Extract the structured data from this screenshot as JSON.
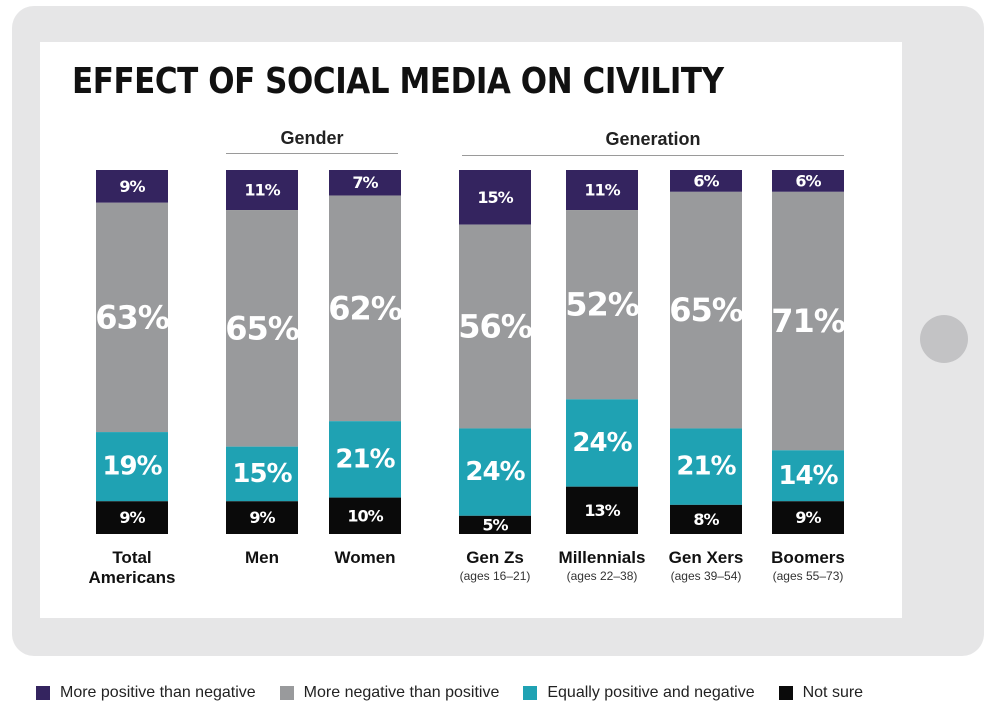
{
  "chart_data": {
    "type": "bar",
    "stacked": true,
    "orientation": "vertical",
    "title": "EFFECT OF SOCIAL MEDIA ON CIVILITY",
    "group_labels": [
      "Gender",
      "Generation"
    ],
    "categories": [
      "Total Americans",
      "Men",
      "Women",
      "Gen Zs",
      "Millennials",
      "Gen Xers",
      "Boomers"
    ],
    "category_lines": [
      [
        "Total",
        "Americans"
      ],
      [
        "Men"
      ],
      [
        "Women"
      ],
      [
        "Gen Zs"
      ],
      [
        "Millennials"
      ],
      [
        "Gen Xers"
      ],
      [
        "Boomers"
      ]
    ],
    "subtitles": [
      "",
      "",
      "",
      "(ages 16–21)",
      "(ages 22–38)",
      "(ages 39–54)",
      "(ages 55–73)"
    ],
    "series": [
      {
        "name": "More positive than negative",
        "color": "#34245f",
        "values": [
          9,
          11,
          7,
          15,
          11,
          6,
          6
        ],
        "labels": [
          "9%",
          "11%",
          "7%",
          "15%",
          "11%",
          "6%",
          "6%"
        ]
      },
      {
        "name": "More negative than positive",
        "color": "#999a9c",
        "values": [
          63,
          65,
          62,
          56,
          52,
          65,
          71
        ],
        "labels": [
          "63%",
          "65%",
          "62%",
          "56%",
          "52%",
          "65%",
          "71%"
        ]
      },
      {
        "name": "Equally positive and negative",
        "color": "#1fa2b3",
        "values": [
          19,
          15,
          21,
          24,
          24,
          21,
          14
        ],
        "labels": [
          "19%",
          "15%",
          "21%",
          "24%",
          "24%",
          "21%",
          "14%"
        ]
      },
      {
        "name": "Not sure",
        "color": "#0a0a0a",
        "values": [
          9,
          9,
          10,
          5,
          13,
          8,
          9
        ],
        "labels": [
          "9%",
          "9%",
          "10%",
          "5%",
          "13%",
          "8%",
          "9%"
        ]
      }
    ],
    "legend_position": "bottom",
    "grid": false
  }
}
